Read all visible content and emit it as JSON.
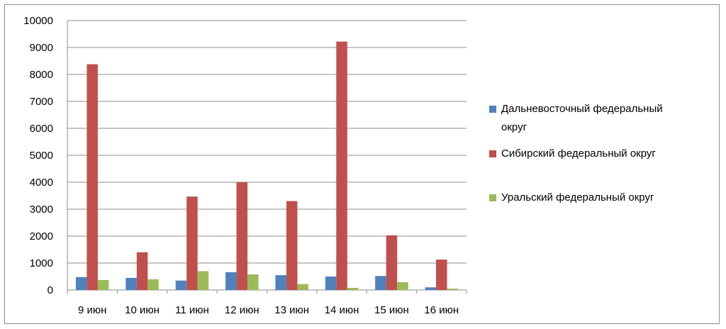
{
  "chart_data": {
    "type": "bar",
    "categories": [
      "9 июн",
      "10 июн",
      "11 июн",
      "12 июн",
      "13 июн",
      "14 июн",
      "15 июн",
      "16 июн"
    ],
    "series": [
      {
        "name": "Дальневосточный федеральный округ",
        "color": "#4f81bd",
        "values": [
          480,
          450,
          350,
          660,
          550,
          500,
          520,
          100
        ]
      },
      {
        "name": "Сибирский федеральный округ",
        "color": "#c0504d",
        "values": [
          8380,
          1400,
          3470,
          4000,
          3300,
          9220,
          2030,
          1130
        ]
      },
      {
        "name": "Уральский федеральный округ",
        "color": "#9bbb59",
        "values": [
          370,
          400,
          700,
          580,
          220,
          80,
          290,
          50
        ]
      }
    ],
    "ylim": [
      0,
      10000
    ],
    "yticks": [
      "0",
      "1000",
      "2000",
      "3000",
      "4000",
      "5000",
      "6000",
      "7000",
      "8000",
      "9000",
      "10000"
    ],
    "grid": true,
    "legend_position": "right",
    "legend_lines": [
      [
        "Дальневосточный федеральный",
        "округ"
      ],
      [
        "Сибирский федеральный округ"
      ],
      [
        "Уральский федеральный округ"
      ]
    ],
    "title": "",
    "xlabel": "",
    "ylabel": ""
  }
}
